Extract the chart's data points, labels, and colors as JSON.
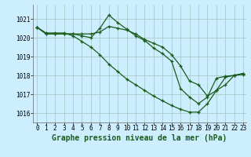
{
  "title": "Graphe pression niveau de la mer (hPa)",
  "background_color": "#cceeff",
  "grid_color": "#aacccc",
  "line_color": "#1a5c1a",
  "x_tick_labels": [
    "0",
    "1",
    "2",
    "3",
    "4",
    "5",
    "6",
    "7",
    "8",
    "9",
    "10",
    "11",
    "12",
    "13",
    "14",
    "15",
    "16",
    "17",
    "18",
    "19",
    "20",
    "21",
    "22",
    "23"
  ],
  "y_ticks": [
    1016,
    1017,
    1018,
    1019,
    1020,
    1021
  ],
  "ylim": [
    1015.5,
    1021.75
  ],
  "xlim": [
    -0.5,
    23.3
  ],
  "series": [
    [
      1020.55,
      1020.2,
      1020.2,
      1020.2,
      1020.2,
      1020.1,
      1020.0,
      1020.5,
      1021.2,
      1020.8,
      1020.45,
      1020.1,
      1019.85,
      1019.45,
      1019.15,
      1018.75,
      1017.3,
      1016.85,
      1016.5,
      1016.85,
      1017.85,
      1017.95,
      1018.0,
      1018.05
    ],
    [
      1020.55,
      1020.2,
      1020.2,
      1020.2,
      1020.2,
      1020.2,
      1020.2,
      1020.3,
      1020.6,
      1020.5,
      1020.4,
      1020.2,
      1019.9,
      1019.7,
      1019.5,
      1019.1,
      1018.5,
      1017.7,
      1017.5,
      1016.9,
      1017.2,
      1017.9,
      1018.0,
      1018.1
    ],
    [
      1020.55,
      1020.25,
      1020.25,
      1020.25,
      1020.1,
      1019.8,
      1019.5,
      1019.1,
      1018.6,
      1018.2,
      1017.8,
      1017.5,
      1017.2,
      1016.9,
      1016.65,
      1016.4,
      1016.2,
      1016.05,
      1016.05,
      1016.5,
      1017.2,
      1017.5,
      1018.0,
      1018.1
    ]
  ],
  "marker": "+",
  "marker_size": 3.5,
  "linewidth": 0.9,
  "tick_fontsize": 5.5,
  "title_fontsize": 7.0
}
